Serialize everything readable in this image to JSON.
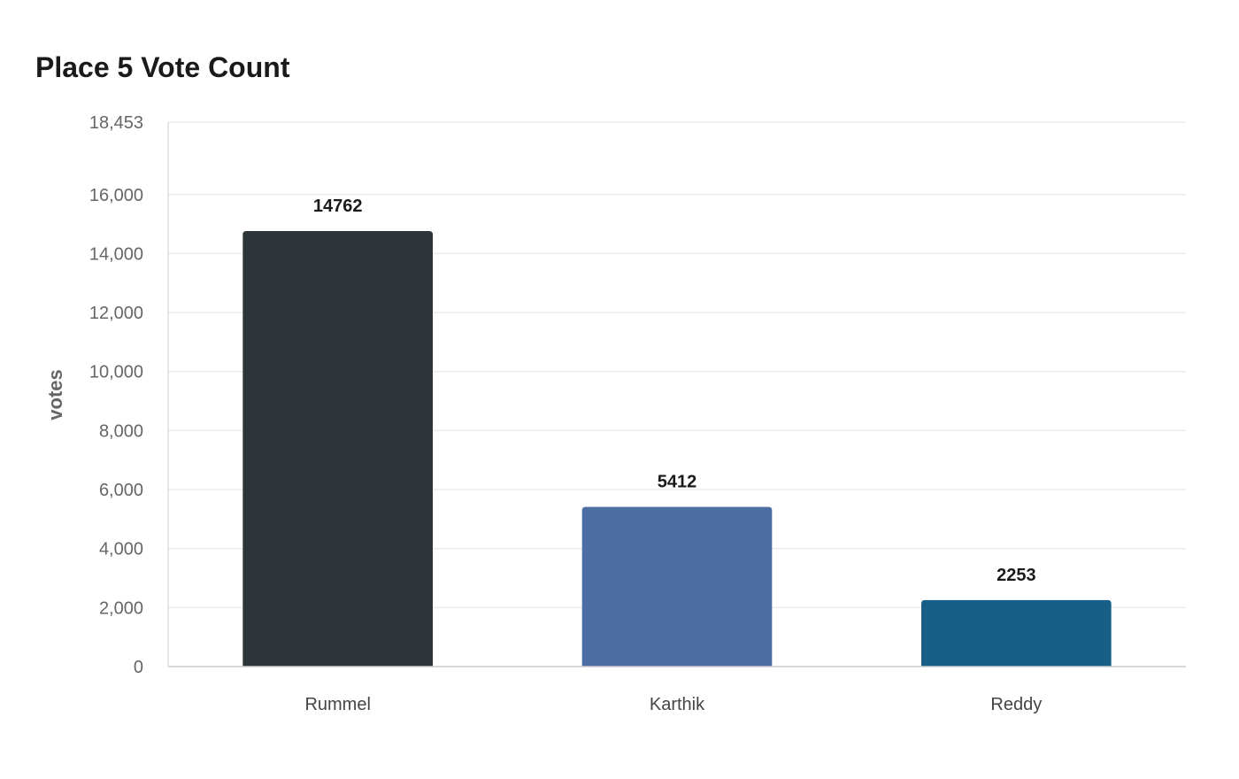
{
  "chart_data": {
    "type": "bar",
    "title": "Place 5 Vote Count",
    "xlabel": "",
    "ylabel": "votes",
    "categories": [
      "Rummel",
      "Karthik",
      "Reddy"
    ],
    "values": [
      14762,
      5412,
      2253
    ],
    "data_labels": [
      "14762",
      "5412",
      "2253"
    ],
    "colors": [
      "#2e3538",
      "#4c6ea3",
      "#175f87"
    ],
    "ylim": [
      0,
      18453
    ],
    "yticks": [
      0,
      2000,
      4000,
      6000,
      8000,
      10000,
      12000,
      14000,
      16000,
      18453
    ],
    "ytick_labels": [
      "0",
      "2,000",
      "4,000",
      "6,000",
      "8,000",
      "10,000",
      "12,000",
      "14,000",
      "16,000",
      "18,453"
    ],
    "grid": true,
    "legend": "none"
  }
}
